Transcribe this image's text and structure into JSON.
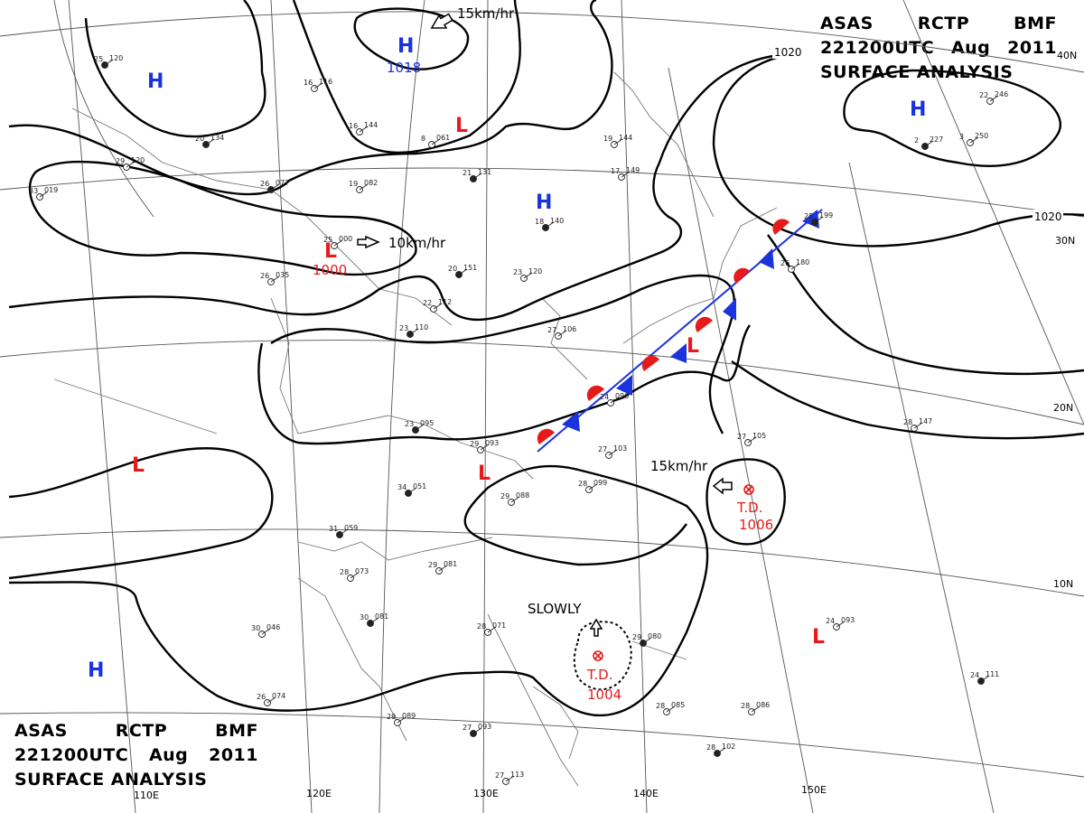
{
  "title_top_right": {
    "line1": [
      "ASAS",
      "RCTP",
      "BMF"
    ],
    "line2": [
      "221200UTC",
      "Aug",
      "2011"
    ],
    "line3": "SURFACE ANALYSIS"
  },
  "title_bottom_left": {
    "line1": [
      "ASAS",
      "RCTP",
      "BMF"
    ],
    "line2": [
      "221200UTC",
      "Aug",
      "2011"
    ],
    "line3": "SURFACE ANALYSIS"
  },
  "longitude_labels": [
    "110E",
    "120E",
    "130E",
    "140E",
    "150E"
  ],
  "latitude_labels": [
    "40N",
    "30N",
    "20N",
    "10N"
  ],
  "isobar_labels": [
    "1020",
    "1020"
  ],
  "systems": [
    {
      "id": "h-north",
      "type": "H",
      "pressure": "1018",
      "motion": "15km/hr"
    },
    {
      "id": "h-northwest",
      "type": "H"
    },
    {
      "id": "h-northeast",
      "type": "H"
    },
    {
      "id": "h-central",
      "type": "H"
    },
    {
      "id": "h-southwest",
      "type": "H"
    },
    {
      "id": "l-north",
      "type": "L"
    },
    {
      "id": "l-west",
      "type": "L",
      "pressure": "1000",
      "motion": "10km/hr"
    },
    {
      "id": "l-southwest",
      "type": "L"
    },
    {
      "id": "l-taiwan",
      "type": "L"
    },
    {
      "id": "l-japan",
      "type": "L"
    },
    {
      "id": "l-east",
      "type": "L"
    },
    {
      "id": "td-east",
      "type": "T.D.",
      "pressure": "1006",
      "motion": "15km/hr"
    },
    {
      "id": "td-south",
      "type": "T.D.",
      "pressure": "1004",
      "motion": "SLOWLY"
    }
  ],
  "front": {
    "type": "stationary",
    "colors": {
      "warm": "#e51b1b",
      "cold": "#1a33dd"
    }
  },
  "stations": [
    {
      "temp": "25",
      "pres": "120"
    },
    {
      "temp": "16",
      "pres": "116"
    },
    {
      "temp": "16",
      "pres": "144"
    },
    {
      "temp": "20",
      "pres": "134"
    },
    {
      "temp": "29",
      "pres": "120"
    },
    {
      "temp": "33",
      "pres": "019"
    },
    {
      "temp": "26",
      "pres": "077"
    },
    {
      "temp": "19",
      "pres": "082"
    },
    {
      "temp": "8",
      "pres": "061"
    },
    {
      "temp": "21",
      "pres": "131"
    },
    {
      "temp": "19",
      "pres": "144"
    },
    {
      "temp": "17",
      "pres": "149"
    },
    {
      "temp": "18",
      "pres": "140"
    },
    {
      "temp": "25",
      "pres": "000"
    },
    {
      "temp": "26",
      "pres": "035"
    },
    {
      "temp": "20",
      "pres": "151"
    },
    {
      "temp": "23",
      "pres": "120"
    },
    {
      "temp": "22",
      "pres": "112"
    },
    {
      "temp": "23",
      "pres": "110"
    },
    {
      "temp": "27",
      "pres": "106"
    },
    {
      "temp": "24",
      "pres": "096"
    },
    {
      "temp": "23",
      "pres": "095"
    },
    {
      "temp": "29",
      "pres": "093"
    },
    {
      "temp": "27",
      "pres": "103"
    },
    {
      "temp": "34",
      "pres": "051"
    },
    {
      "temp": "28",
      "pres": "099"
    },
    {
      "temp": "29",
      "pres": "088"
    },
    {
      "temp": "31",
      "pres": "059"
    },
    {
      "temp": "29",
      "pres": "081"
    },
    {
      "temp": "28",
      "pres": "073"
    },
    {
      "temp": "30",
      "pres": "081"
    },
    {
      "temp": "30",
      "pres": "046"
    },
    {
      "temp": "28",
      "pres": "071"
    },
    {
      "temp": "29",
      "pres": "080"
    },
    {
      "temp": "26",
      "pres": "074"
    },
    {
      "temp": "29",
      "pres": "089"
    },
    {
      "temp": "27",
      "pres": "093"
    },
    {
      "temp": "28",
      "pres": "085"
    },
    {
      "temp": "28",
      "pres": "086"
    },
    {
      "temp": "28",
      "pres": "102"
    },
    {
      "temp": "27",
      "pres": "113"
    },
    {
      "temp": "24",
      "pres": "093"
    },
    {
      "temp": "24",
      "pres": "111"
    },
    {
      "temp": "28",
      "pres": "147"
    },
    {
      "temp": "27",
      "pres": "105"
    },
    {
      "temp": "25",
      "pres": "199"
    },
    {
      "temp": "26",
      "pres": "180"
    },
    {
      "temp": "22",
      "pres": "246"
    },
    {
      "temp": "2",
      "pres": "227"
    },
    {
      "temp": "3",
      "pres": "250"
    }
  ]
}
